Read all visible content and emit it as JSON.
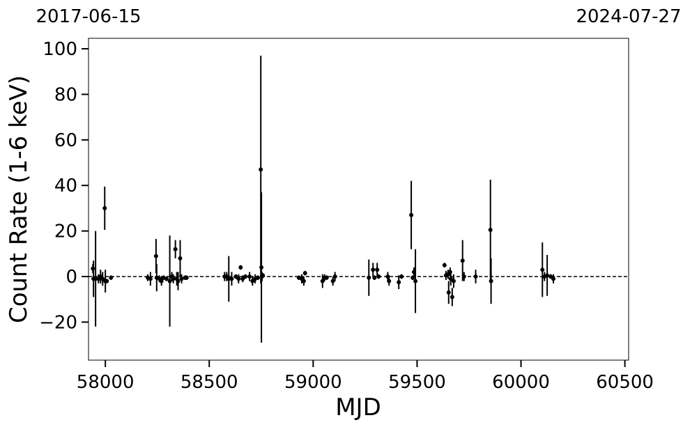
{
  "chart_data": {
    "type": "errorbar",
    "x_label": "MJD",
    "y_label": "Count Rate (1-6 keV)",
    "xlim": [
      57919,
      60518
    ],
    "ylim": [
      -36.7,
      104.6
    ],
    "xticks": [
      58000,
      58500,
      59000,
      59500,
      60000,
      60500
    ],
    "yticks": [
      {
        "value": -20,
        "label": "−20"
      },
      0,
      20,
      40,
      60,
      80,
      100
    ],
    "x2ticks": [
      {
        "value": 57919,
        "label": "2017-06-15"
      },
      {
        "value": 60518,
        "label": "2024-07-27"
      }
    ],
    "reference_line": {
      "y": 0,
      "style": "dashed",
      "color": "#000000"
    },
    "series": [
      {
        "color": "#000000",
        "x": [
          57940,
          57943,
          57953,
          57967,
          57977,
          57987,
          57997,
          58000,
          58007,
          58027,
          58204,
          58217,
          58244,
          58247,
          58260,
          58270,
          58280,
          58294,
          58310,
          58320,
          58327,
          58337,
          58344,
          58350,
          58360,
          58367,
          58384,
          58391,
          58574,
          58584,
          58594,
          58608,
          58628,
          58641,
          58651,
          58661,
          58674,
          58694,
          58708,
          58721,
          58734,
          58748,
          58751,
          58754,
          58758,
          58931,
          58945,
          58955,
          58961,
          59045,
          59055,
          59065,
          59095,
          59105,
          59268,
          59288,
          59295,
          59308,
          59315,
          59359,
          59365,
          59412,
          59425,
          59472,
          59479,
          59485,
          59492,
          59632,
          59639,
          59649,
          59652,
          59659,
          59662,
          59669,
          59676,
          59719,
          59726,
          59782,
          59853,
          59856,
          60103,
          60113,
          60126,
          60143,
          60156
        ],
        "values": [
          3.5,
          -1,
          -1,
          -1,
          0,
          -1,
          30,
          -2,
          -2,
          -0.5,
          -0.5,
          -1,
          9,
          -0.5,
          -1,
          -2,
          -0.5,
          -1,
          -2,
          0,
          -1,
          12,
          -1,
          -2,
          8,
          -1,
          -0.5,
          -0.5,
          0,
          0,
          -1,
          -1,
          0,
          -1,
          4,
          -1,
          0,
          0,
          -2,
          -1,
          -0.5,
          47,
          4,
          0,
          0.5,
          -0.5,
          -1,
          -2,
          1.5,
          -2,
          -0.5,
          -0.5,
          -2,
          0,
          -0.5,
          3,
          -0.5,
          3,
          0,
          0,
          -2,
          -2.5,
          0,
          27,
          -0.5,
          2,
          -2,
          5,
          0.5,
          1,
          -7,
          2,
          -1,
          -9,
          -2,
          7,
          0,
          0,
          20.5,
          -2,
          3,
          0,
          0.5,
          0,
          -1
        ],
        "errors": [
          2,
          8,
          21,
          2,
          3,
          3,
          9.5,
          5,
          1,
          1,
          1.5,
          3,
          7.5,
          6,
          1.5,
          2,
          1,
          1,
          20,
          2,
          2,
          4,
          3,
          4,
          8,
          2,
          1,
          1,
          2,
          2,
          10,
          3,
          1,
          2,
          1,
          1.5,
          1,
          2,
          2,
          2,
          1,
          50,
          33,
          2,
          1,
          1,
          2,
          2,
          1,
          3,
          1.5,
          1,
          2,
          2,
          8,
          3,
          1,
          3,
          1,
          2,
          2,
          3,
          1,
          15,
          1,
          2,
          14,
          1,
          2,
          2,
          5,
          2,
          3,
          4,
          3,
          9,
          2,
          3,
          22,
          10,
          12,
          2,
          9,
          1,
          2
        ]
      }
    ]
  }
}
